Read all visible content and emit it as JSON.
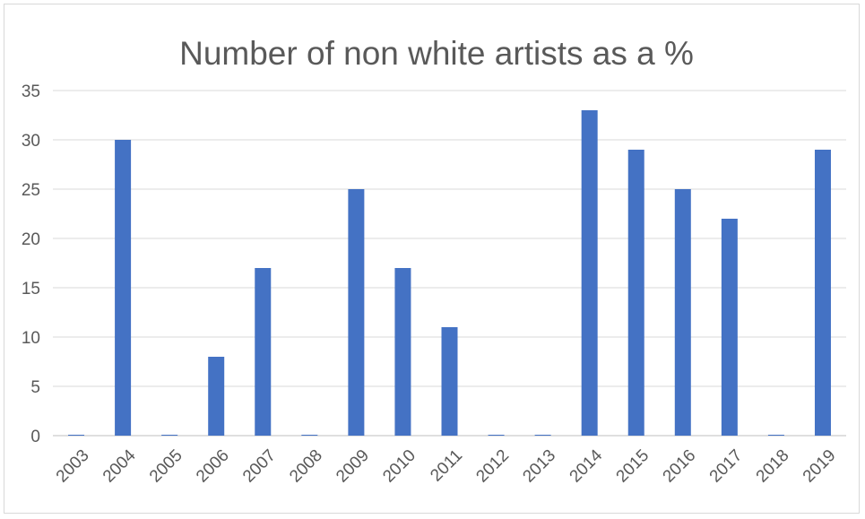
{
  "chart_data": {
    "type": "bar",
    "title": "Number of non white artists as a %",
    "xlabel": "",
    "ylabel": "",
    "categories": [
      "2003",
      "2004",
      "2005",
      "2006",
      "2007",
      "2008",
      "2009",
      "2010",
      "2011",
      "2012",
      "2013",
      "2014",
      "2015",
      "2016",
      "2017",
      "2018",
      "2019"
    ],
    "values": [
      0,
      30,
      0,
      8,
      17,
      0,
      25,
      17,
      11,
      0,
      0,
      33,
      29,
      25,
      22,
      0,
      29
    ],
    "ylim": [
      0,
      35
    ],
    "yticks": [
      "0",
      "5",
      "10",
      "15",
      "20",
      "25",
      "30",
      "35"
    ],
    "grid": true,
    "legend": "none",
    "bar_color": "#4472c4"
  }
}
